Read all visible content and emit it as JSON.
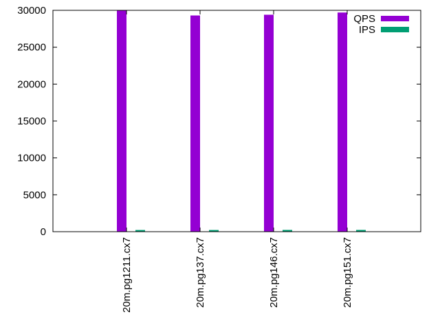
{
  "chart_data": {
    "type": "bar",
    "title": "",
    "xlabel": "",
    "ylabel": "",
    "categories": [
      "20m.pg1211.cx7",
      "20m.pg137.cx7",
      "20m.pg146.cx7",
      "20m.pg151.cx7"
    ],
    "series": [
      {
        "name": "QPS",
        "color": "#9400d3",
        "values": [
          29950,
          29300,
          29400,
          29700
        ]
      },
      {
        "name": "IPS",
        "color": "#009e73",
        "values": [
          230,
          230,
          240,
          240
        ]
      }
    ],
    "ylim": [
      0,
      30000
    ],
    "yticks": [
      "0",
      "5000",
      "10000",
      "15000",
      "20000",
      "25000",
      "30000"
    ],
    "grid": false,
    "legend_position": "top-right"
  }
}
